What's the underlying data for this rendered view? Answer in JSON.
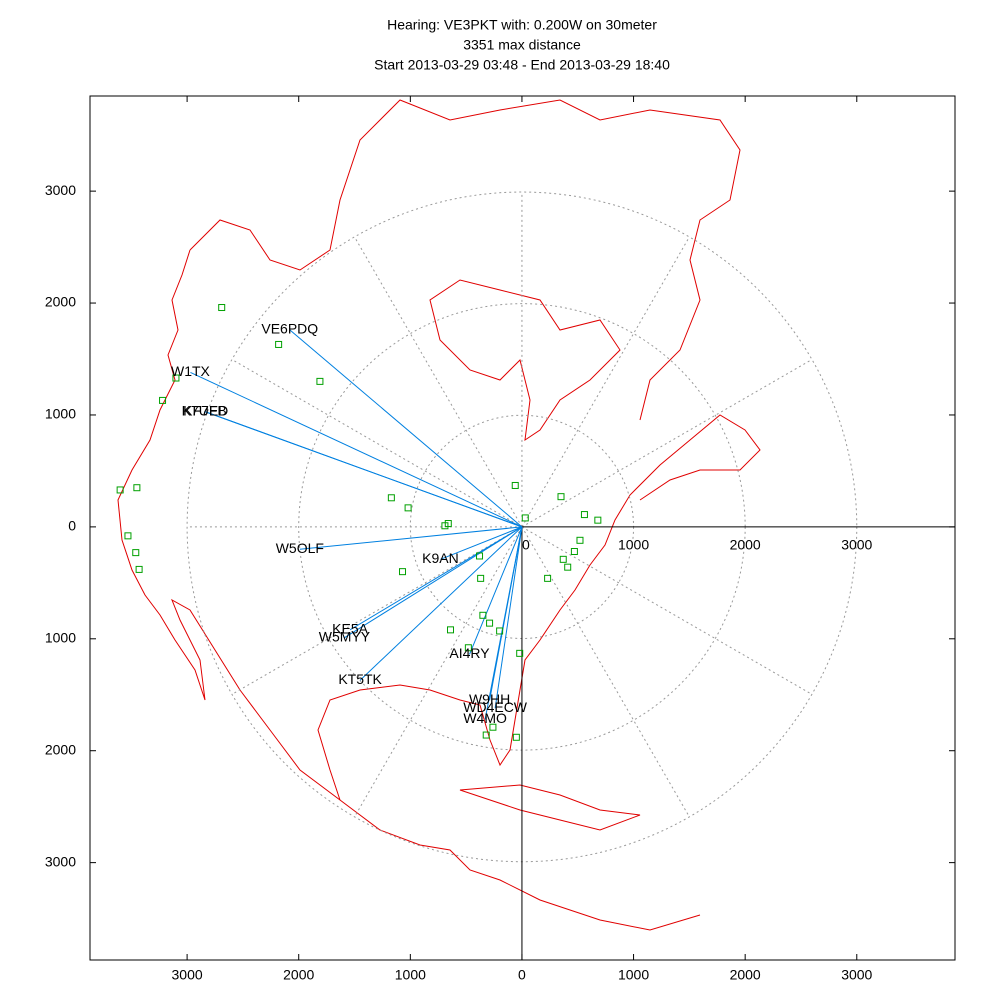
{
  "chart_data": {
    "type": "polar-map",
    "title": "Hearing: VE3PKT with: 0.200W on 30meter",
    "subtitle": "3351 max distance",
    "period": "Start 2013-03-29 03:48 - End 2013-03-29 18:40",
    "xlim": [
      -3870,
      3880
    ],
    "ylim": [
      -3870,
      3850
    ],
    "xticks": [
      {
        "value": -3000,
        "label": "3000"
      },
      {
        "value": -2000,
        "label": "2000"
      },
      {
        "value": -1000,
        "label": "1000"
      },
      0,
      1000,
      2000,
      3000
    ],
    "yticks": [
      {
        "value": -3000,
        "label": "3000"
      },
      {
        "value": -2000,
        "label": "2000"
      },
      {
        "value": -1000,
        "label": "1000"
      },
      0,
      1000,
      2000,
      3000
    ],
    "range_rings": [
      1000,
      2000,
      3000
    ],
    "spots": {
      "color": "#00a000",
      "x": [
        -2690,
        -2180,
        -1810,
        -3100,
        -3220,
        -3600,
        -3450,
        -3530,
        -3460,
        -3430,
        -1170,
        -1020,
        -1070,
        -690,
        -660,
        -60,
        30,
        350,
        560,
        680,
        520,
        470,
        370,
        410,
        230,
        -380,
        -370,
        -350,
        -290,
        -200,
        -640,
        -480,
        -20,
        -50,
        -320,
        -260
      ],
      "y": [
        1960,
        1630,
        1300,
        1330,
        1130,
        330,
        350,
        -80,
        -230,
        -380,
        260,
        170,
        -400,
        10,
        30,
        370,
        80,
        270,
        110,
        60,
        -120,
        -220,
        -290,
        -360,
        -460,
        -260,
        -460,
        -790,
        -860,
        -930,
        -920,
        -1080,
        -1130,
        -1880,
        -1860,
        -1790
      ]
    },
    "stations": {
      "color": "#0080e0",
      "labels": [
        "VE6PDQ",
        "W1TX",
        "K7UED",
        "KF7FB",
        "W5OLF",
        "K9AN",
        "KE5A",
        "W5MYY",
        "AI4RY",
        "KT5TK",
        "W9HH",
        "WD4ECW",
        "W4MO"
      ],
      "x": [
        -2080,
        -2970,
        -2840,
        -2840,
        -1990,
        -730,
        -1540,
        -1590,
        -470,
        -1450,
        -290,
        -240,
        -330
      ],
      "y": [
        1760,
        1380,
        1030,
        1030,
        -200,
        -290,
        -920,
        -990,
        -1140,
        -1370,
        -1550,
        -1620,
        -1720
      ]
    },
    "coast_color": "#e00000"
  }
}
